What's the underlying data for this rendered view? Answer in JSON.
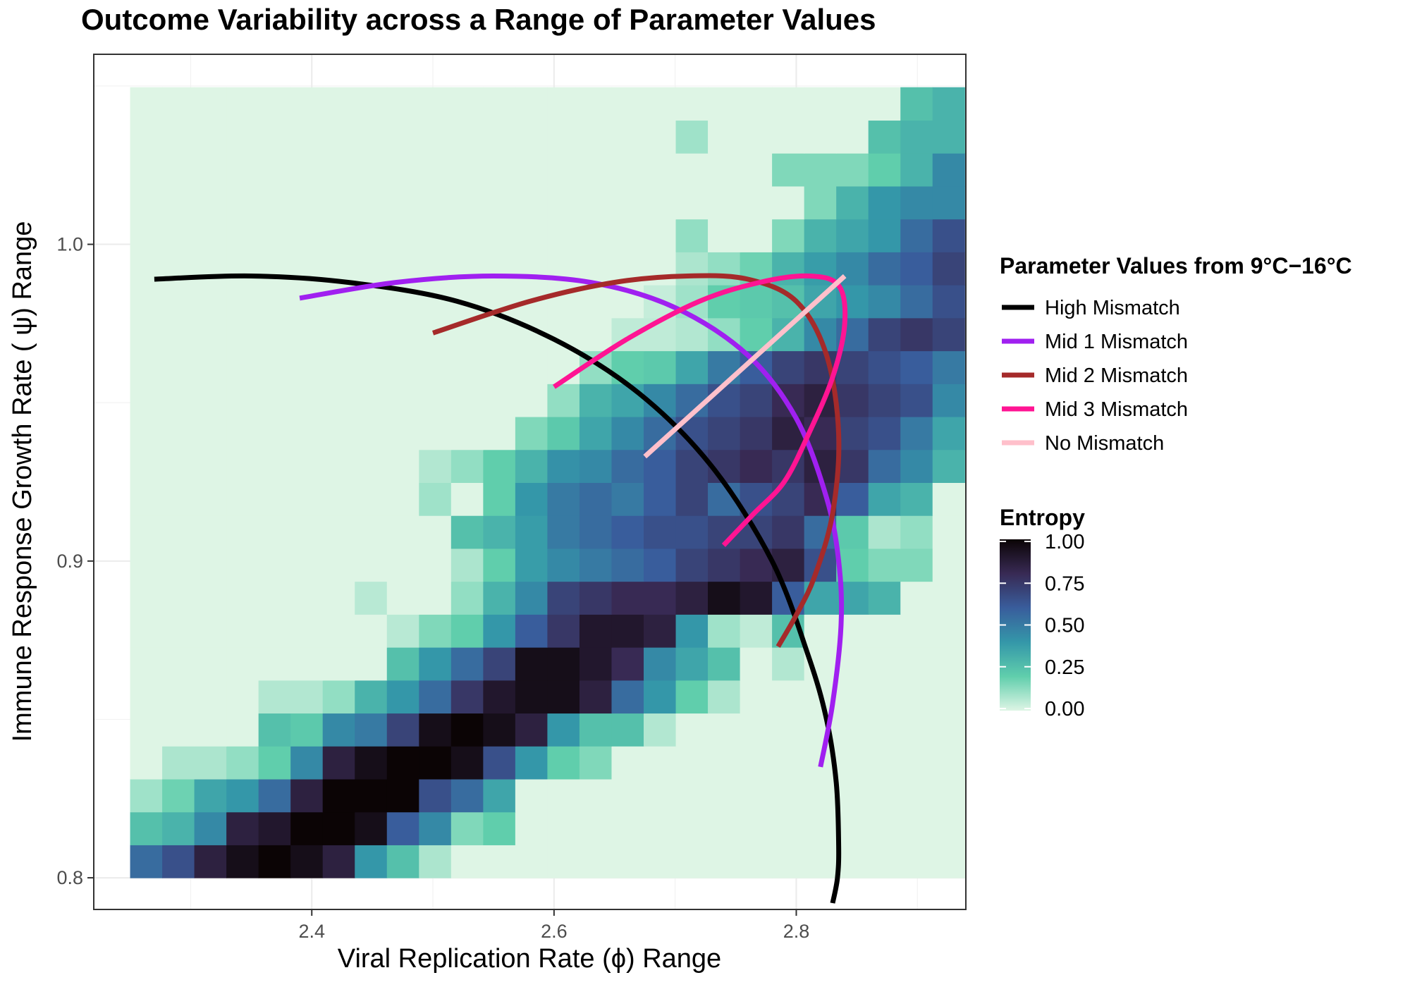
{
  "chart_data": {
    "type": "heatmap",
    "title": "Outcome Variability across a Range of Parameter Values",
    "xlabel": "Viral Replication Rate (ϕ) Range",
    "ylabel": "Immune Response Growth Rate ( ψ) Range",
    "xlim": [
      2.22,
      2.94
    ],
    "ylim": [
      0.79,
      1.06
    ],
    "x_ticks": [
      "2.4",
      "2.6",
      "2.8"
    ],
    "y_ticks": [
      "0.8",
      "0.9",
      "1.0"
    ],
    "grid": true,
    "heatmap": {
      "x_start": 2.25,
      "x_step": 0.0265,
      "y_start": 0.8,
      "y_step": 0.0104,
      "values": [
        [
          0.55,
          0.65,
          0.85,
          0.95,
          1.0,
          0.95,
          0.85,
          0.4,
          0.25,
          0.08,
          0,
          0,
          0,
          0,
          0,
          0,
          0,
          0,
          0,
          0,
          0,
          0,
          0,
          0,
          0,
          0
        ],
        [
          0.25,
          0.3,
          0.45,
          0.85,
          0.9,
          1.0,
          1.0,
          0.95,
          0.6,
          0.45,
          0.15,
          0.2,
          0,
          0,
          0,
          0,
          0,
          0,
          0,
          0,
          0,
          0,
          0,
          0,
          0,
          0
        ],
        [
          0.1,
          0.18,
          0.35,
          0.4,
          0.55,
          0.85,
          1.0,
          1.0,
          1.0,
          0.65,
          0.55,
          0.35,
          0,
          0,
          0,
          0,
          0,
          0,
          0,
          0,
          0,
          0,
          0,
          0,
          0,
          0
        ],
        [
          0,
          0.08,
          0.08,
          0.12,
          0.2,
          0.45,
          0.85,
          0.95,
          1.0,
          1.0,
          0.95,
          0.65,
          0.4,
          0.2,
          0.15,
          0,
          0,
          0,
          0,
          0,
          0,
          0,
          0,
          0,
          0,
          0
        ],
        [
          0,
          0,
          0,
          0,
          0.25,
          0.22,
          0.45,
          0.5,
          0.7,
          0.95,
          1.0,
          0.95,
          0.85,
          0.4,
          0.25,
          0.25,
          0.07,
          0,
          0,
          0,
          0,
          0,
          0,
          0,
          0,
          0
        ],
        [
          0,
          0,
          0,
          0,
          0.07,
          0.07,
          0.12,
          0.3,
          0.4,
          0.55,
          0.75,
          0.9,
          0.95,
          0.95,
          0.85,
          0.55,
          0.4,
          0.2,
          0.08,
          0,
          0,
          0,
          0,
          0,
          0,
          0
        ],
        [
          0,
          0,
          0,
          0,
          0,
          0,
          0,
          0,
          0.25,
          0.4,
          0.55,
          0.7,
          0.95,
          0.95,
          0.9,
          0.8,
          0.45,
          0.35,
          0.25,
          0,
          0.07,
          0,
          0,
          0,
          0,
          0
        ],
        [
          0,
          0,
          0,
          0,
          0,
          0,
          0,
          0,
          0.06,
          0.15,
          0.2,
          0.4,
          0.6,
          0.75,
          0.9,
          0.9,
          0.85,
          0.4,
          0.1,
          0.05,
          0.25,
          0,
          0,
          0,
          0,
          0
        ],
        [
          0,
          0,
          0,
          0,
          0,
          0,
          0,
          0.06,
          0,
          0,
          0.12,
          0.3,
          0.45,
          0.7,
          0.75,
          0.8,
          0.8,
          0.85,
          0.95,
          0.9,
          0.6,
          0.35,
          0.35,
          0.3,
          0,
          0
        ],
        [
          0,
          0,
          0,
          0,
          0,
          0,
          0,
          0,
          0,
          0,
          0.08,
          0.2,
          0.38,
          0.45,
          0.5,
          0.55,
          0.6,
          0.7,
          0.75,
          0.8,
          0.85,
          0.65,
          0.2,
          0.15,
          0.15,
          0
        ],
        [
          0,
          0,
          0,
          0,
          0,
          0,
          0,
          0,
          0,
          0,
          0.25,
          0.3,
          0.38,
          0.5,
          0.55,
          0.6,
          0.65,
          0.65,
          0.7,
          0.7,
          0.75,
          0.55,
          0.22,
          0.08,
          0.12,
          0
        ],
        [
          0,
          0,
          0,
          0,
          0,
          0,
          0,
          0,
          0,
          0.1,
          0,
          0.2,
          0.4,
          0.5,
          0.55,
          0.5,
          0.6,
          0.7,
          0.55,
          0.65,
          0.7,
          0.8,
          0.6,
          0.35,
          0.3,
          0
        ],
        [
          0,
          0,
          0,
          0,
          0,
          0,
          0,
          0,
          0,
          0.07,
          0.12,
          0.2,
          0.3,
          0.42,
          0.45,
          0.55,
          0.6,
          0.7,
          0.75,
          0.8,
          0.75,
          0.85,
          0.75,
          0.55,
          0.45,
          0.3
        ],
        [
          0,
          0,
          0,
          0,
          0,
          0,
          0,
          0,
          0,
          0,
          0,
          0,
          0.15,
          0.22,
          0.35,
          0.45,
          0.55,
          0.65,
          0.7,
          0.75,
          0.85,
          0.8,
          0.7,
          0.65,
          0.5,
          0.35
        ],
        [
          0,
          0,
          0,
          0,
          0,
          0,
          0,
          0,
          0,
          0,
          0,
          0,
          0,
          0.12,
          0.3,
          0.35,
          0.45,
          0.55,
          0.65,
          0.7,
          0.8,
          0.85,
          0.75,
          0.7,
          0.65,
          0.45
        ],
        [
          0,
          0,
          0,
          0,
          0,
          0,
          0,
          0,
          0,
          0,
          0,
          0,
          0,
          0,
          0.12,
          0.2,
          0.22,
          0.35,
          0.5,
          0.6,
          0.7,
          0.75,
          0.7,
          0.65,
          0.6,
          0.5
        ],
        [
          0,
          0,
          0,
          0,
          0,
          0,
          0,
          0,
          0,
          0,
          0,
          0,
          0,
          0,
          0,
          0.05,
          0.05,
          0.07,
          0.12,
          0.2,
          0.3,
          0.45,
          0.55,
          0.7,
          0.75,
          0.7
        ],
        [
          0,
          0,
          0,
          0,
          0,
          0,
          0,
          0,
          0,
          0,
          0,
          0,
          0,
          0,
          0,
          0,
          0.04,
          0.1,
          0.2,
          0.22,
          0.25,
          0.35,
          0.4,
          0.45,
          0.55,
          0.65
        ],
        [
          0,
          0,
          0,
          0,
          0,
          0,
          0,
          0,
          0,
          0,
          0,
          0,
          0,
          0,
          0,
          0,
          0,
          0.08,
          0.12,
          0.18,
          0.3,
          0.38,
          0.45,
          0.55,
          0.6,
          0.7
        ],
        [
          0,
          0,
          0,
          0,
          0,
          0,
          0,
          0,
          0,
          0,
          0,
          0,
          0,
          0,
          0,
          0,
          0,
          0.12,
          0,
          0,
          0.15,
          0.3,
          0.35,
          0.4,
          0.55,
          0.65
        ],
        [
          0,
          0,
          0,
          0,
          0,
          0,
          0,
          0,
          0,
          0,
          0,
          0,
          0,
          0,
          0,
          0,
          0,
          0,
          0,
          0,
          0,
          0.15,
          0.3,
          0.4,
          0.45,
          0.45
        ],
        [
          0,
          0,
          0,
          0,
          0,
          0,
          0,
          0,
          0,
          0,
          0,
          0,
          0,
          0,
          0,
          0,
          0,
          0,
          0,
          0,
          0.15,
          0.15,
          0.15,
          0.2,
          0.3,
          0.45
        ],
        [
          0,
          0,
          0,
          0,
          0,
          0,
          0,
          0,
          0,
          0,
          0,
          0,
          0,
          0,
          0,
          0,
          0,
          0.1,
          0,
          0,
          0,
          0,
          0,
          0.25,
          0.3,
          0.3
        ],
        [
          0,
          0,
          0,
          0,
          0,
          0,
          0,
          0,
          0,
          0,
          0,
          0,
          0,
          0,
          0,
          0,
          0,
          0,
          0,
          0,
          0,
          0,
          0,
          0,
          0.25,
          0.3
        ]
      ]
    },
    "series": [
      {
        "name": "High Mismatch",
        "color": "#000000",
        "x": [
          2.27,
          2.35,
          2.43,
          2.52,
          2.6,
          2.67,
          2.73,
          2.78,
          2.81,
          2.825,
          2.833,
          2.835,
          2.834,
          2.83
        ],
        "y": [
          0.989,
          0.99,
          0.988,
          0.982,
          0.97,
          0.953,
          0.93,
          0.9,
          0.87,
          0.85,
          0.83,
          0.81,
          0.8,
          0.792
        ]
      },
      {
        "name": "Mid 1 Mismatch",
        "color": "#a020f0",
        "x": [
          2.39,
          2.47,
          2.55,
          2.63,
          2.7,
          2.76,
          2.8,
          2.825,
          2.835,
          2.837,
          2.83,
          2.82
        ],
        "y": [
          0.983,
          0.988,
          0.99,
          0.988,
          0.98,
          0.965,
          0.945,
          0.92,
          0.9,
          0.88,
          0.855,
          0.835
        ]
      },
      {
        "name": "Mid 2 Mismatch",
        "color": "#a52a2a",
        "x": [
          2.5,
          2.58,
          2.65,
          2.71,
          2.76,
          2.8,
          2.825,
          2.835,
          2.83,
          2.815,
          2.8,
          2.785
        ],
        "y": [
          0.972,
          0.982,
          0.988,
          0.99,
          0.989,
          0.982,
          0.965,
          0.94,
          0.915,
          0.895,
          0.883,
          0.873
        ]
      },
      {
        "name": "Mid 3 Mismatch",
        "color": "#ff1493",
        "x": [
          2.6,
          2.66,
          2.72,
          2.77,
          2.81,
          2.835,
          2.84,
          2.83,
          2.81,
          2.79,
          2.765,
          2.74
        ],
        "y": [
          0.955,
          0.97,
          0.982,
          0.988,
          0.99,
          0.987,
          0.975,
          0.958,
          0.94,
          0.925,
          0.915,
          0.905
        ]
      },
      {
        "name": "No Mismatch",
        "color": "#ffc0cb",
        "x": [
          2.675,
          2.84
        ],
        "y": [
          0.933,
          0.99
        ]
      }
    ],
    "legend": {
      "position": "right",
      "lines_title": "Parameter Values from 9°C−16°C",
      "lines": [
        {
          "label": "High Mismatch",
          "color": "#000000"
        },
        {
          "label": "Mid 1 Mismatch",
          "color": "#a020f0"
        },
        {
          "label": "Mid 2 Mismatch",
          "color": "#a52a2a"
        },
        {
          "label": "Mid 3 Mismatch",
          "color": "#ff1493"
        },
        {
          "label": "No Mismatch",
          "color": "#ffc0cb"
        }
      ],
      "colorbar_title": "Entropy",
      "colorbar_ticks": [
        "1.00",
        "0.75",
        "0.50",
        "0.25",
        "0.00"
      ],
      "colorbar_values": [
        1.0,
        0.75,
        0.5,
        0.25,
        0.0
      ],
      "colorbar_colors": [
        "#0b0405",
        "#382a54",
        "#395d9c",
        "#3497a9",
        "#60ceac",
        "#def5e5"
      ]
    }
  }
}
